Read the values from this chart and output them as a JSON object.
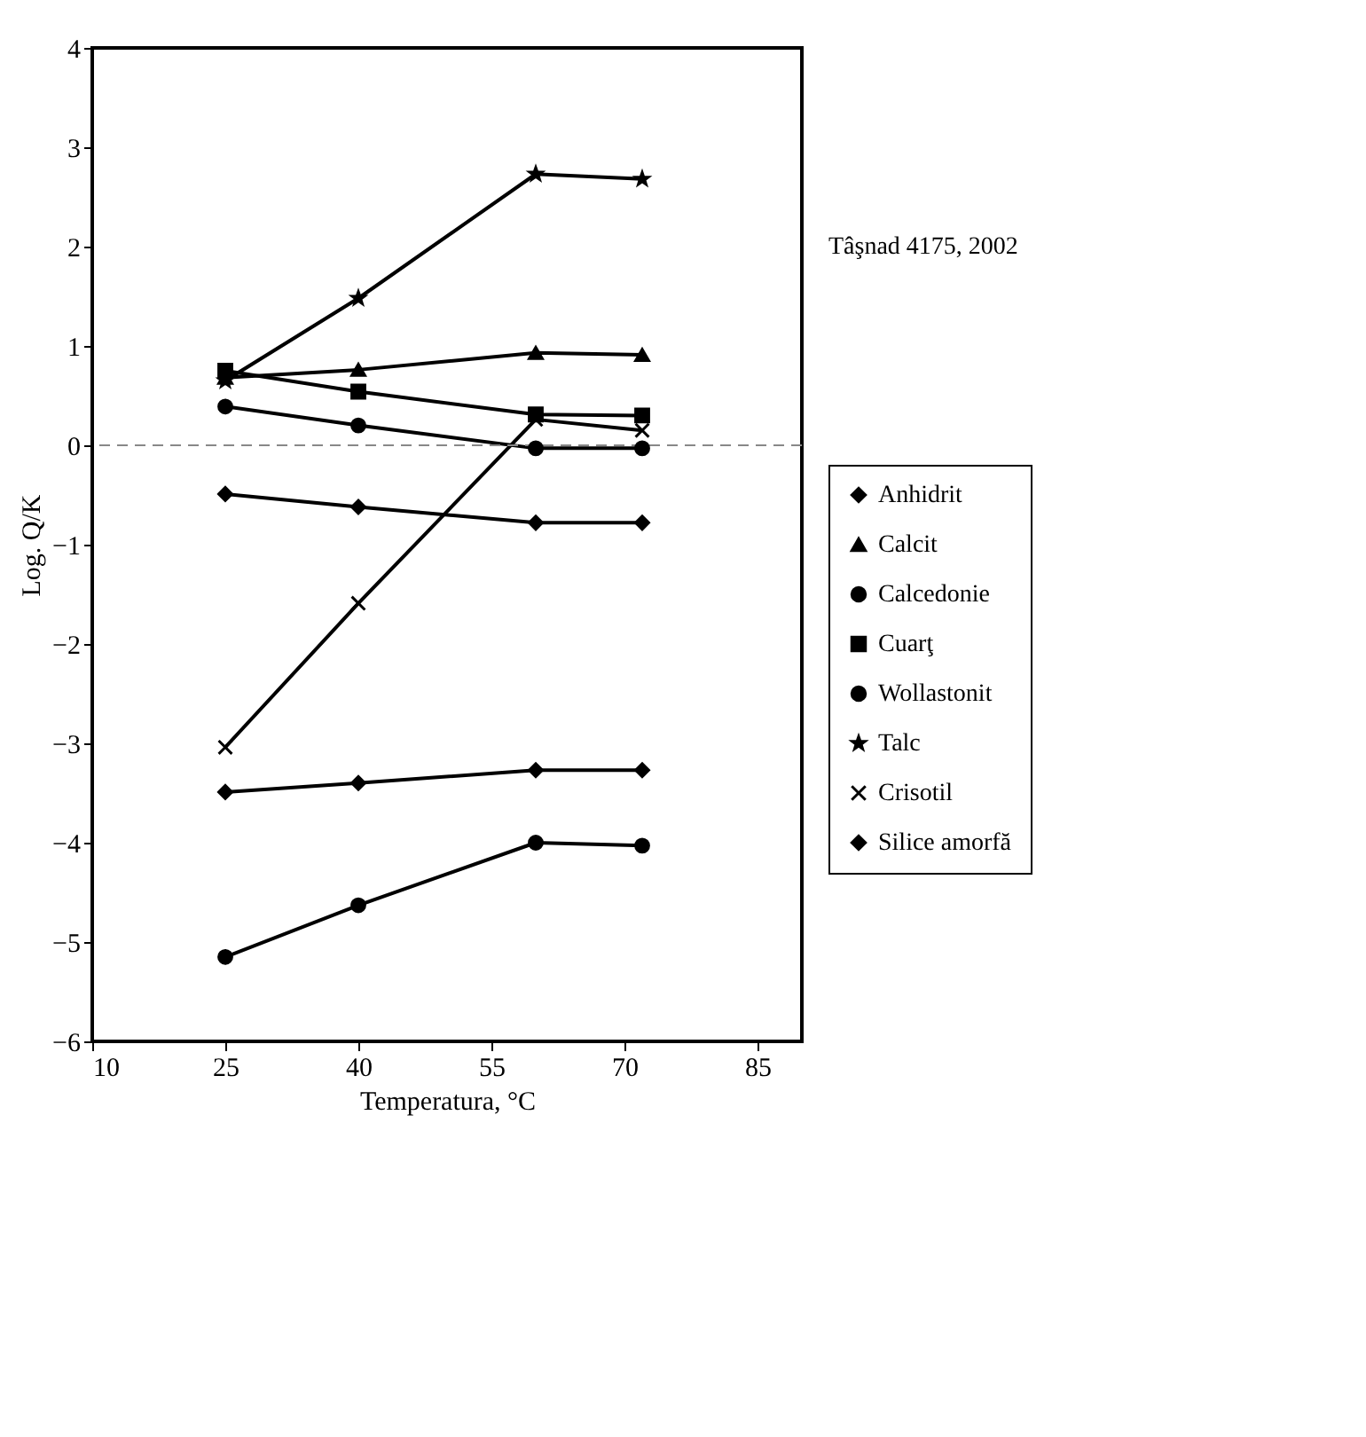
{
  "chart_data": {
    "type": "line",
    "xlabel": "Temperatura, °C",
    "ylabel": "Log. Q/K",
    "annotations": [
      "Tâşnad 4175, 2002"
    ],
    "x": [
      25,
      40,
      60,
      72
    ],
    "series": [
      {
        "name": "Anhidrit",
        "color": "#000000",
        "marker": "diamond",
        "values": [
          -3.49,
          -3.4,
          -3.27,
          -3.27
        ]
      },
      {
        "name": "Calcit",
        "color": "#000000",
        "marker": "triangle",
        "values": [
          0.68,
          0.76,
          0.93,
          0.91
        ]
      },
      {
        "name": "Calcedonie",
        "color": "#000000",
        "marker": "circle",
        "values": [
          0.39,
          0.2,
          -0.03,
          -0.03
        ]
      },
      {
        "name": "Cuarţ",
        "color": "#000000",
        "marker": "square",
        "values": [
          0.75,
          0.54,
          0.31,
          0.3
        ]
      },
      {
        "name": "Wollastonit",
        "color": "#000000",
        "marker": "circle",
        "values": [
          -5.15,
          -4.63,
          -4.0,
          -4.03
        ]
      },
      {
        "name": "Talc",
        "color": "#000000",
        "marker": "star",
        "values": [
          0.65,
          1.48,
          2.73,
          2.68
        ]
      },
      {
        "name": "Crisotil",
        "color": "#000000",
        "marker": "cross",
        "values": [
          -3.04,
          -1.59,
          0.26,
          0.15
        ]
      },
      {
        "name": "Silice amorfă",
        "color": "#000000",
        "marker": "diamond",
        "values": [
          -0.49,
          -0.62,
          -0.78,
          -0.78
        ]
      }
    ],
    "xlim": [
      10,
      90
    ],
    "xticks": [
      10,
      25,
      40,
      55,
      70,
      85
    ],
    "ylim": [
      -6,
      4
    ],
    "yticks": [
      -6,
      -5,
      -4,
      -3,
      -2,
      -1,
      0,
      1,
      2,
      3,
      4
    ],
    "grid": false,
    "legend": "right",
    "line_style": "solid",
    "ref_lines": [
      {
        "axis": "y",
        "value": 0,
        "color": "#888888",
        "line_style": "dashed"
      }
    ]
  }
}
